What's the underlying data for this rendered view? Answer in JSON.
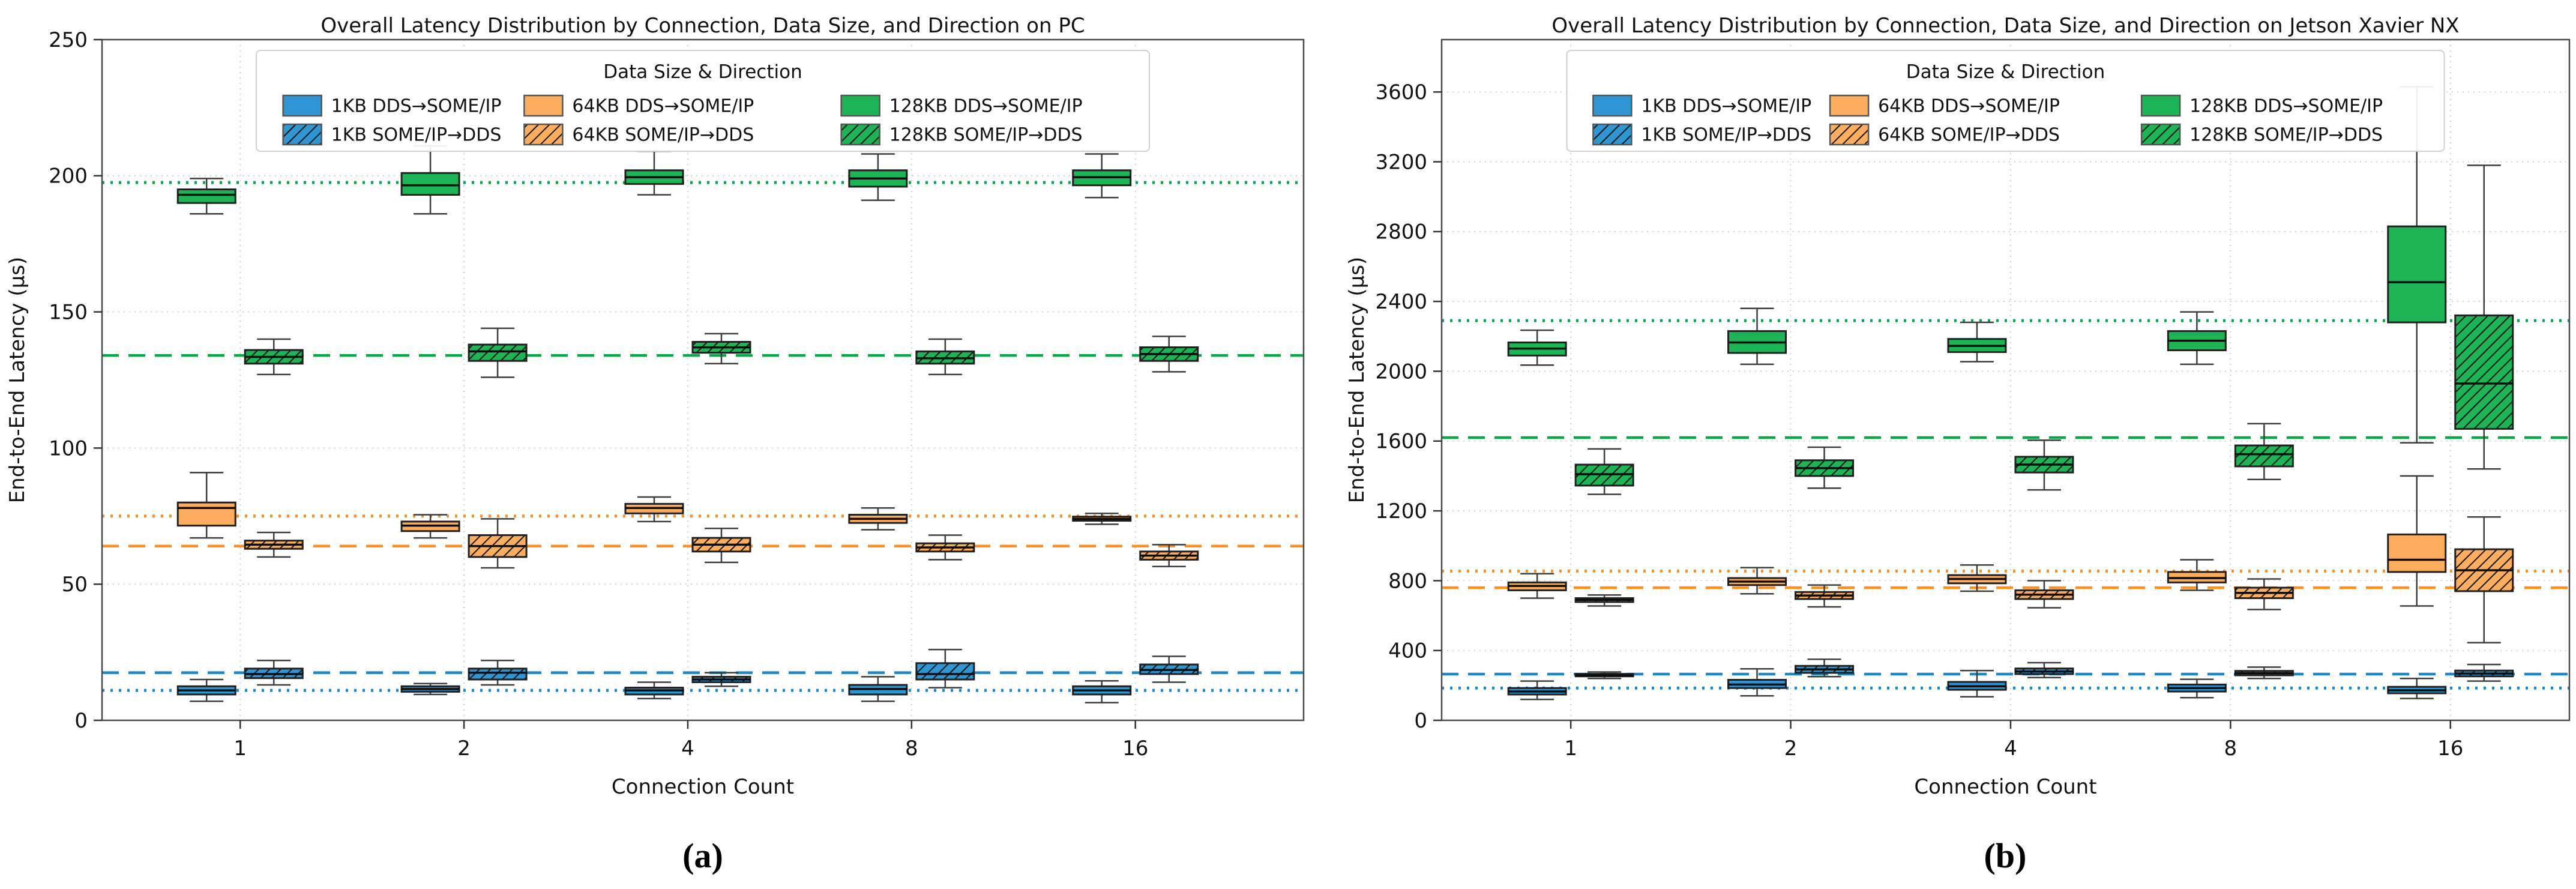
{
  "captions": {
    "a": "(a)",
    "b": "(b)"
  },
  "palette": {
    "blue": {
      "fill": "#2E96D3",
      "line": "#1E88C7"
    },
    "orange": {
      "fill": "#FCAD5D",
      "line": "#FF8F1F"
    },
    "green": {
      "fill": "#1CB454",
      "line": "#0AA64A"
    },
    "box_edge": "#202020",
    "whisker": "#3c3c3c",
    "median": "#0d0d0d",
    "grid": "#cccccc",
    "spine": "#4a4a4a",
    "legend_border": "#cfcfcf"
  },
  "chart_data": [
    {
      "type": "boxplot",
      "title": "Overall Latency Distribution by Connection, Data Size, and Direction on PC",
      "xlabel": "Connection Count",
      "ylabel": "End-to-End Latency (µs)",
      "legend_title": "Data Size & Direction",
      "legend_position": "upper center",
      "grid": true,
      "categories": [
        "1",
        "2",
        "4",
        "8",
        "16"
      ],
      "ylim": [
        0,
        250
      ],
      "yticks": [
        0,
        50,
        100,
        150,
        200,
        250
      ],
      "box_stats_format": [
        "whisker_low",
        "q1",
        "median",
        "q3",
        "whisker_high"
      ],
      "series": [
        {
          "name": "1KB DDS→SOME/IP",
          "color": "blue",
          "hatch": false,
          "boxes": [
            [
              7,
              9.5,
              11,
              12.5,
              15
            ],
            [
              9.5,
              10.5,
              11.5,
              12.5,
              13.5
            ],
            [
              8,
              9.5,
              11,
              12,
              14
            ],
            [
              7,
              9.5,
              11.5,
              13,
              16
            ],
            [
              6.5,
              9.5,
              11,
              12.5,
              14.5
            ]
          ]
        },
        {
          "name": "1KB SOME/IP→DDS",
          "color": "blue",
          "hatch": true,
          "boxes": [
            [
              13,
              15.5,
              17,
              19,
              22
            ],
            [
              13,
              15,
              17.5,
              19,
              22
            ],
            [
              12.5,
              14,
              15,
              16,
              17.5
            ],
            [
              12,
              15,
              17,
              21,
              26
            ],
            [
              14,
              17,
              18.5,
              20.5,
              23.5
            ]
          ]
        },
        {
          "name": "64KB DDS→SOME/IP",
          "color": "orange",
          "hatch": false,
          "boxes": [
            [
              67,
              71.5,
              78,
              80,
              91
            ],
            [
              67,
              69.5,
              71.5,
              73,
              75.5
            ],
            [
              73,
              76,
              78,
              79.5,
              82
            ],
            [
              70,
              72.5,
              74,
              75.5,
              78
            ],
            [
              72,
              73.3,
              74,
              74.8,
              76
            ]
          ]
        },
        {
          "name": "64KB SOME/IP→DDS",
          "color": "orange",
          "hatch": true,
          "boxes": [
            [
              60,
              63,
              64.5,
              66,
              69
            ],
            [
              56,
              60,
              64,
              68,
              74
            ],
            [
              58,
              62,
              64.5,
              67,
              70.5
            ],
            [
              59,
              62,
              63.5,
              65,
              68
            ],
            [
              56.5,
              59,
              60.5,
              62,
              64.5
            ]
          ]
        },
        {
          "name": "128KB DDS→SOME/IP",
          "color": "green",
          "hatch": false,
          "boxes": [
            [
              186,
              190,
              193,
              195,
              199
            ],
            [
              186,
              193,
              196.5,
              201,
              211
            ],
            [
              193,
              197,
              199.5,
              202,
              209
            ],
            [
              191,
              196,
              199,
              202,
              208
            ],
            [
              192,
              196.5,
              199.5,
              202,
              208
            ]
          ]
        },
        {
          "name": "128KB SOME/IP→DDS",
          "color": "green",
          "hatch": true,
          "boxes": [
            [
              127,
              131,
              133.5,
              136,
              140
            ],
            [
              126,
              132,
              135.5,
              138,
              144
            ],
            [
              131,
              135,
              137,
              139,
              142
            ],
            [
              127,
              131,
              133,
              135.5,
              140
            ],
            [
              128,
              132,
              134.5,
              137,
              141
            ]
          ]
        }
      ],
      "ref_lines": [
        {
          "color": "blue",
          "style": "dotted",
          "value": 11
        },
        {
          "color": "blue",
          "style": "dashed",
          "value": 17.5
        },
        {
          "color": "orange",
          "style": "dashed",
          "value": 64
        },
        {
          "color": "orange",
          "style": "dotted",
          "value": 75
        },
        {
          "color": "green",
          "style": "dashed",
          "value": 134
        },
        {
          "color": "green",
          "style": "dotted",
          "value": 197.5
        }
      ]
    },
    {
      "type": "boxplot",
      "title": "Overall Latency Distribution by Connection, Data Size, and Direction on Jetson Xavier NX",
      "xlabel": "Connection Count",
      "ylabel": "End-to-End Latency (µs)",
      "legend_title": "Data Size & Direction",
      "legend_position": "upper center",
      "grid": true,
      "categories": [
        "1",
        "2",
        "4",
        "8",
        "16"
      ],
      "ylim": [
        0,
        3900
      ],
      "yticks": [
        0,
        400,
        800,
        1200,
        1600,
        2000,
        2400,
        2800,
        3200,
        3600
      ],
      "box_stats_format": [
        "whisker_low",
        "q1",
        "median",
        "q3",
        "whisker_high"
      ],
      "series": [
        {
          "name": "1KB DDS→SOME/IP",
          "color": "blue",
          "hatch": false,
          "boxes": [
            [
              120,
              148,
              165,
              185,
              225
            ],
            [
              140,
              185,
              205,
              232,
              295
            ],
            [
              135,
              175,
              195,
              220,
              285
            ],
            [
              130,
              165,
              185,
              205,
              235
            ],
            [
              125,
              155,
              172,
              192,
              240
            ]
          ]
        },
        {
          "name": "1KB SOME/IP→DDS",
          "color": "blue",
          "hatch": true,
          "boxes": [
            [
              240,
              252,
              258,
              266,
              277
            ],
            [
              250,
              272,
              292,
              312,
              350
            ],
            [
              245,
              265,
              280,
              297,
              330
            ],
            [
              240,
              258,
              270,
              283,
              305
            ],
            [
              225,
              252,
              268,
              285,
              320
            ]
          ]
        },
        {
          "name": "64KB DDS→SOME/IP",
          "color": "orange",
          "hatch": false,
          "boxes": [
            [
              700,
              745,
              770,
              790,
              840
            ],
            [
              725,
              775,
              795,
              815,
              875
            ],
            [
              740,
              785,
              810,
              832,
              890
            ],
            [
              745,
              790,
              815,
              850,
              920
            ],
            [
              655,
              850,
              920,
              1065,
              1400
            ]
          ]
        },
        {
          "name": "64KB SOME/IP→DDS",
          "color": "orange",
          "hatch": true,
          "boxes": [
            [
              655,
              678,
              690,
              700,
              718
            ],
            [
              650,
              695,
              715,
              735,
              775
            ],
            [
              645,
              695,
              720,
              745,
              800
            ],
            [
              635,
              700,
              730,
              760,
              810
            ],
            [
              445,
              740,
              860,
              980,
              1165
            ]
          ]
        },
        {
          "name": "128KB DDS→SOME/IP",
          "color": "green",
          "hatch": false,
          "boxes": [
            [
              2035,
              2090,
              2130,
              2165,
              2235
            ],
            [
              2040,
              2105,
              2165,
              2230,
              2360
            ],
            [
              2055,
              2110,
              2145,
              2185,
              2280
            ],
            [
              2040,
              2120,
              2175,
              2230,
              2340
            ],
            [
              1590,
              2280,
              2510,
              2830,
              3630
            ]
          ]
        },
        {
          "name": "128KB SOME/IP→DDS",
          "color": "green",
          "hatch": true,
          "boxes": [
            [
              1295,
              1345,
              1410,
              1465,
              1555
            ],
            [
              1330,
              1400,
              1445,
              1490,
              1565
            ],
            [
              1320,
              1420,
              1465,
              1510,
              1605
            ],
            [
              1380,
              1455,
              1525,
              1575,
              1700
            ],
            [
              1440,
              1670,
              1930,
              2320,
              3180
            ]
          ]
        }
      ],
      "ref_lines": [
        {
          "color": "blue",
          "style": "dotted",
          "value": 185
        },
        {
          "color": "blue",
          "style": "dashed",
          "value": 265
        },
        {
          "color": "orange",
          "style": "dashed",
          "value": 760
        },
        {
          "color": "orange",
          "style": "dotted",
          "value": 855
        },
        {
          "color": "green",
          "style": "dashed",
          "value": 1620
        },
        {
          "color": "green",
          "style": "dotted",
          "value": 2290
        }
      ]
    }
  ]
}
